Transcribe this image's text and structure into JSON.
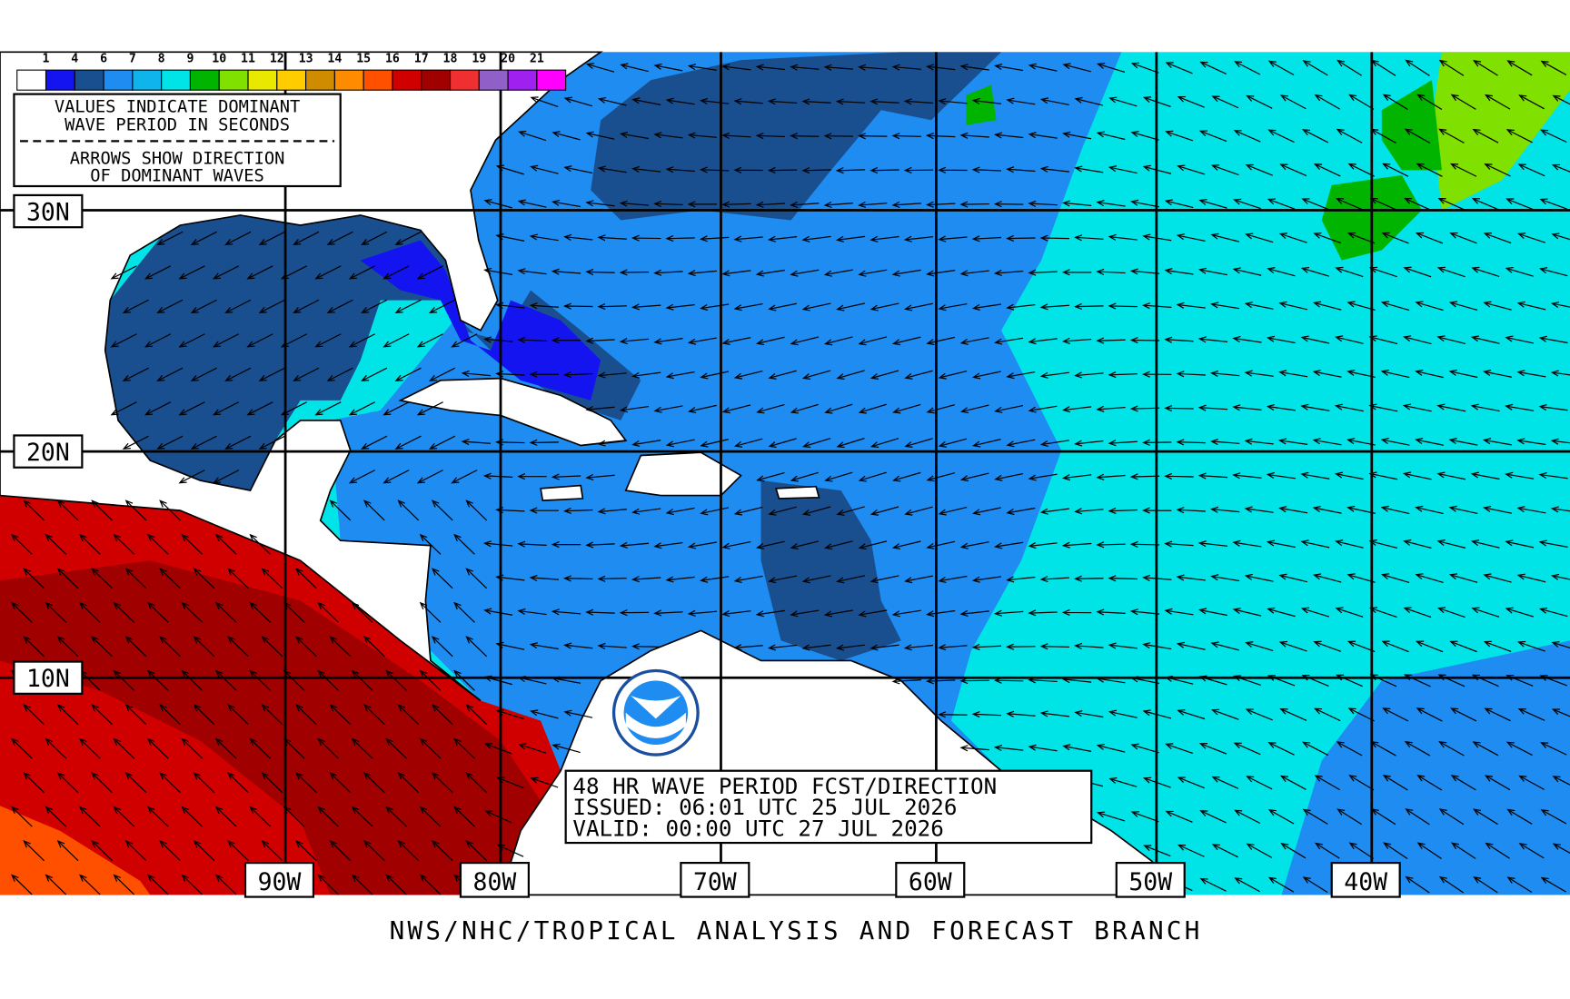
{
  "legend": {
    "labels": [
      "1",
      "4",
      "6",
      "7",
      "8",
      "9",
      "10",
      "11",
      "12",
      "13",
      "14",
      "15",
      "16",
      "17",
      "18",
      "19",
      "20",
      "21"
    ],
    "colors": [
      "#ffffff",
      "#1414f0",
      "#1a4f8f",
      "#1e8cf0",
      "#10b4ec",
      "#00e4e8",
      "#00b400",
      "#80e000",
      "#e8e800",
      "#ffcc00",
      "#d08c00",
      "#ff8c00",
      "#ff5000",
      "#d00000",
      "#a00000",
      "#f03030",
      "#9060c8",
      "#a020f0",
      "#ff00ff"
    ]
  },
  "notes": {
    "lines": [
      "VALUES INDICATE DOMINANT",
      "WAVE PERIOD IN SECONDS",
      "ARROWS SHOW DIRECTION",
      "OF DOMINANT WAVES"
    ]
  },
  "latitude_labels": [
    "30N",
    "20N",
    "10N"
  ],
  "longitude_labels": [
    "90W",
    "80W",
    "70W",
    "60W",
    "50W",
    "40W"
  ],
  "forecast": {
    "lines": [
      "48 HR WAVE PERIOD FCST/DIRECTION",
      "ISSUED: 06:01 UTC 25 JUL 2026",
      "VALID:  00:00 UTC 27 JUL 2026"
    ]
  },
  "footer": "NWS/NHC/TROPICAL ANALYSIS AND FORECAST BRANCH"
}
